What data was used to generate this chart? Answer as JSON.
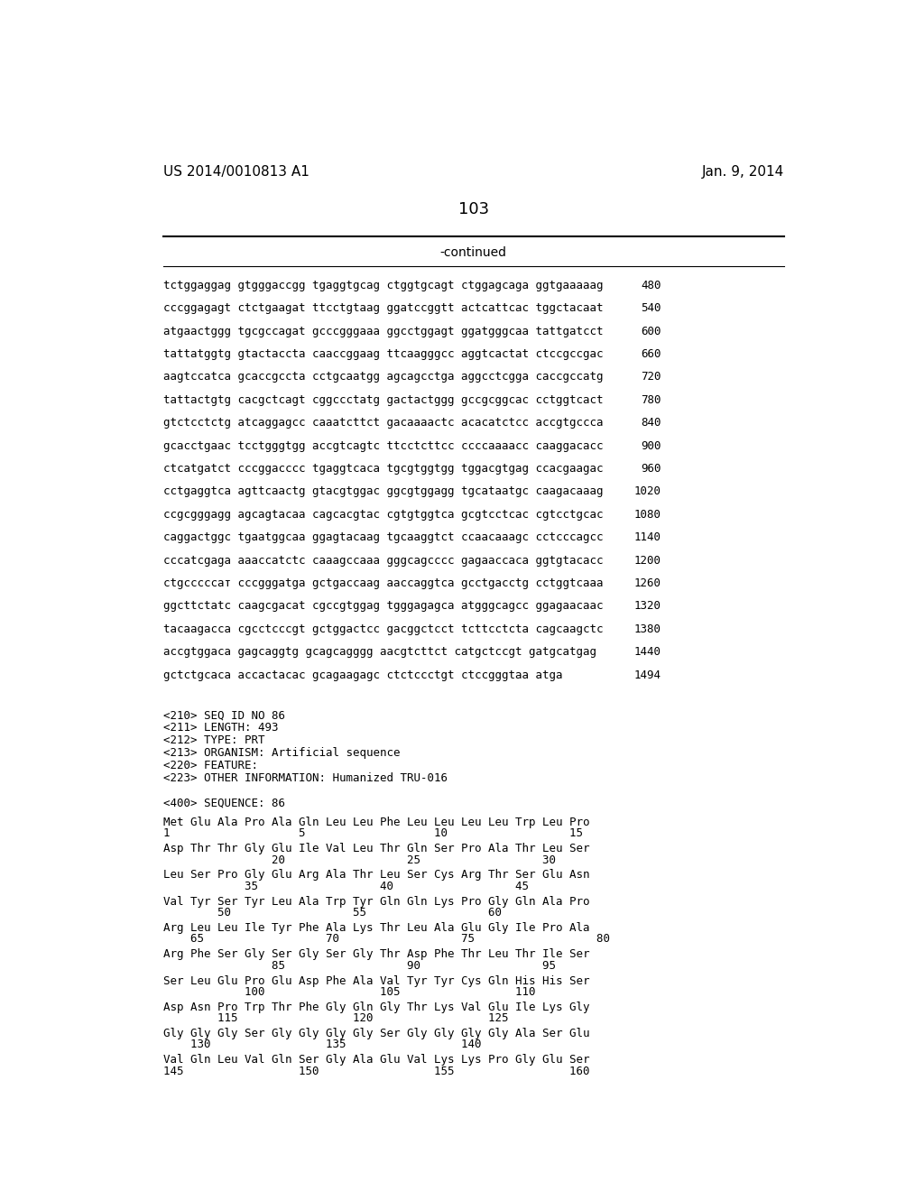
{
  "bg_color": "#ffffff",
  "header_left": "US 2014/0010813 A1",
  "header_right": "Jan. 9, 2014",
  "page_number": "103",
  "continued_label": "-continued",
  "sequence_lines": [
    [
      "tctggaggag gtgggaccgg tgaggtgcag ctggtgcagt ctggagcaga ggtgaaaaag",
      "480"
    ],
    [
      "cccggagagt ctctgaagat ttcctgtaag ggatccggtt actcattcac tggctacaat",
      "540"
    ],
    [
      "atgaactggg tgcgccagat gcccgggaaa ggcctggagt ggatgggcaa tattgatcct",
      "600"
    ],
    [
      "tattatggtg gtactaccta caaccggaag ttcaagggcc aggtcactat ctccgccgac",
      "660"
    ],
    [
      "aagtccatca gcaccgccta cctgcaatgg agcagcctga aggcctcgga caccgccatg",
      "720"
    ],
    [
      "tattactgtg cacgctcagt cggccctatg gactactggg gccgcggcac cctggtcact",
      "780"
    ],
    [
      "gtctcctctg atcaggagcc caaatcttct gacaaaactc acacatctcc accgtgccca",
      "840"
    ],
    [
      "gcacctgaac tcctgggtgg accgtcagtc ttcctcttcc ccccaaaacc caaggacacc",
      "900"
    ],
    [
      "ctcatgatct cccggacccc tgaggtcaca tgcgtggtgg tggacgtgag ccacgaagac",
      "960"
    ],
    [
      "cctgaggtca agttcaactg gtacgtggac ggcgtggagg tgcataatgc caagacaaag",
      "1020"
    ],
    [
      "ccgcgggagg agcagtacaa cagcacgtac cgtgtggtca gcgtcctcac cgtcctgcac",
      "1080"
    ],
    [
      "caggactggc tgaatggcaa ggagtacaag tgcaaggtct ccaacaaagc cctcccagcc",
      "1140"
    ],
    [
      "cccatcgaga aaaccatctc caaagccaaa gggcagcccc gagaaccaca ggtgtacacc",
      "1200"
    ],
    [
      "ctgcccccат cccgggatga gctgaccaag aaccaggtca gcctgacctg cctggtcaaa",
      "1260"
    ],
    [
      "ggcttctatc caagcgacat cgccgtggag tgggagagca atgggcagcc ggagaacaac",
      "1320"
    ],
    [
      "tacaagacca cgcctcccgt gctggactcc gacggctcct tcttcctcta cagcaagctc",
      "1380"
    ],
    [
      "accgtggaca gagcaggtg gcagcagggg aacgtcttct catgctccgt gatgcatgag",
      "1440"
    ],
    [
      "gctctgcaca accactacac gcagaagagc ctctccctgt ctccgggtaa atga",
      "1494"
    ]
  ],
  "metadata_lines": [
    "<210> SEQ ID NO 86",
    "<211> LENGTH: 493",
    "<212> TYPE: PRT",
    "<213> ORGANISM: Artificial sequence",
    "<220> FEATURE:",
    "<223> OTHER INFORMATION: Humanized TRU-016"
  ],
  "sequence_label": "<400> SEQUENCE: 86",
  "protein_blocks": [
    {
      "residues": "Met Glu Ala Pro Ala Gln Leu Leu Phe Leu Leu Leu Leu Trp Leu Pro",
      "numbers": "1                   5                   10                  15"
    },
    {
      "residues": "Asp Thr Thr Gly Glu Ile Val Leu Thr Gln Ser Pro Ala Thr Leu Ser",
      "numbers": "                20                  25                  30"
    },
    {
      "residues": "Leu Ser Pro Gly Glu Arg Ala Thr Leu Ser Cys Arg Thr Ser Glu Asn",
      "numbers": "            35                  40                  45"
    },
    {
      "residues": "Val Tyr Ser Tyr Leu Ala Trp Tyr Gln Gln Lys Pro Gly Gln Ala Pro",
      "numbers": "        50                  55                  60"
    },
    {
      "residues": "Arg Leu Leu Ile Tyr Phe Ala Lys Thr Leu Ala Glu Gly Ile Pro Ala",
      "numbers": "    65                  70                  75                  80"
    },
    {
      "residues": "Arg Phe Ser Gly Ser Gly Ser Gly Thr Asp Phe Thr Leu Thr Ile Ser",
      "numbers": "                85                  90                  95"
    },
    {
      "residues": "Ser Leu Glu Pro Glu Asp Phe Ala Val Tyr Tyr Cys Gln His His Ser",
      "numbers": "            100                 105                 110"
    },
    {
      "residues": "Asp Asn Pro Trp Thr Phe Gly Gln Gly Thr Lys Val Glu Ile Lys Gly",
      "numbers": "        115                 120                 125"
    },
    {
      "residues": "Gly Gly Gly Ser Gly Gly Gly Gly Ser Gly Gly Gly Gly Ala Ser Glu",
      "numbers": "    130                 135                 140"
    },
    {
      "residues": "Val Gln Leu Val Gln Ser Gly Ala Glu Val Lys Lys Pro Gly Glu Ser",
      "numbers": "145                 150                 155                 160"
    }
  ],
  "fig_width": 10.24,
  "fig_height": 13.2,
  "dpi": 100
}
